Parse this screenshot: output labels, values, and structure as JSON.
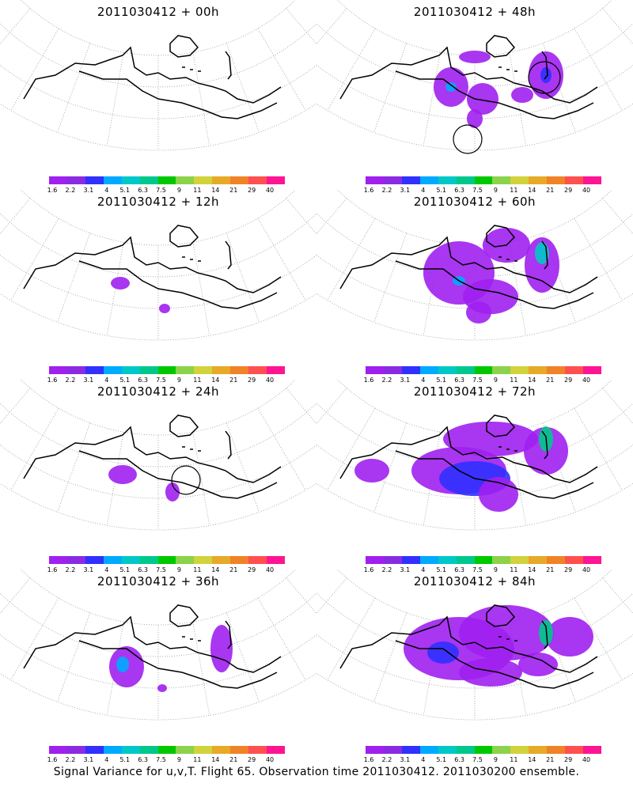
{
  "panels": [
    {
      "title": "2011030412 + 00h",
      "col": 0,
      "row": 0,
      "blobs": "p00",
      "circles": []
    },
    {
      "title": "2011030412 + 48h",
      "col": 1,
      "row": 0,
      "blobs": "p48",
      "circles": [
        1,
        2
      ]
    },
    {
      "title": "2011030412 + 12h",
      "col": 0,
      "row": 1,
      "blobs": "p12",
      "circles": []
    },
    {
      "title": "2011030412 + 60h",
      "col": 1,
      "row": 1,
      "blobs": "p60",
      "circles": []
    },
    {
      "title": "2011030412 + 24h",
      "col": 0,
      "row": 2,
      "blobs": "p24",
      "circles": [
        1
      ]
    },
    {
      "title": "2011030412 + 72h",
      "col": 1,
      "row": 2,
      "blobs": "p72",
      "circles": []
    },
    {
      "title": "2011030412 + 36h",
      "col": 0,
      "row": 3,
      "blobs": "p36",
      "circles": []
    },
    {
      "title": "2011030412 + 84h",
      "col": 1,
      "row": 3,
      "blobs": "p84",
      "circles": []
    }
  ],
  "colorbar": {
    "colors": [
      "#a020f0",
      "#8a2be2",
      "#3030ff",
      "#00aaff",
      "#00c8c8",
      "#00c88c",
      "#00c800",
      "#8cd24a",
      "#d2d23c",
      "#e6aa28",
      "#f08228",
      "#ff5050",
      "#ff1493"
    ],
    "ticks": [
      "1.6",
      "2.2",
      "3.1",
      "4",
      "5.1",
      "6.3",
      "7.5",
      "9",
      "11",
      "14",
      "21",
      "29",
      "40"
    ]
  },
  "footer": "Signal Variance for u,v,T. Flight 65. Observation time 2011030412. 2011030200 ensemble."
}
